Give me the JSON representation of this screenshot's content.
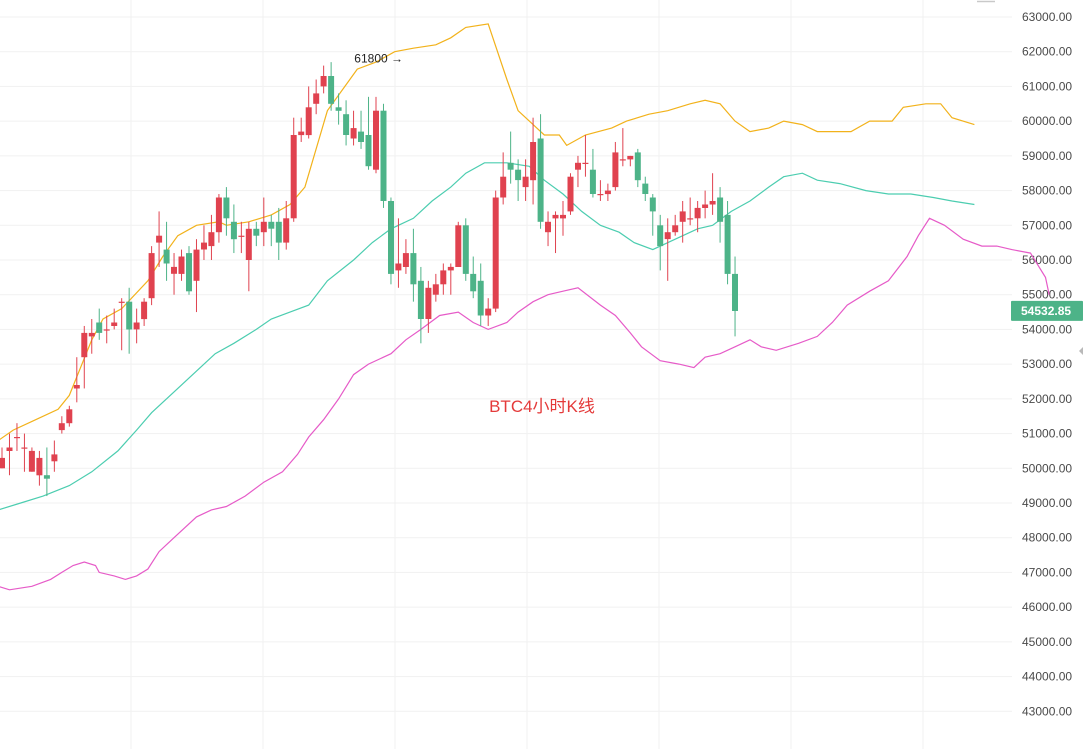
{
  "chart_data": {
    "type": "candlestick",
    "title": "BTC4小时K线",
    "ylim": [
      42000,
      63000
    ],
    "grid": true,
    "y_ticks": [
      "63000.00",
      "62000.00",
      "61000.00",
      "60000.00",
      "59000.00",
      "58000.00",
      "57000.00",
      "56000.00",
      "55000.00",
      "54000.00",
      "53000.00",
      "52000.00",
      "51000.00",
      "50000.00",
      "49000.00",
      "48000.00",
      "47000.00",
      "46000.00",
      "45000.00",
      "44000.00",
      "43000.00"
    ],
    "last_price": "54532.85",
    "annotation": {
      "label": "61800 →",
      "price": 61800
    },
    "colors": {
      "up": "#e0424f",
      "down": "#4db388",
      "upper": "#f2b21b",
      "middle": "#4ccdb0",
      "lower": "#e65bc8",
      "title": "#e43a3a"
    },
    "candles": [
      [
        50000,
        50600,
        50300,
        50000
      ],
      [
        50500,
        51000,
        50600,
        49800
      ],
      [
        50900,
        51300,
        50900,
        50500
      ],
      [
        50600,
        51000,
        50600,
        49900
      ],
      [
        49900,
        50600,
        50500,
        49900
      ],
      [
        49800,
        50500,
        50300,
        49500
      ],
      [
        49800,
        50600,
        49700,
        49200
      ],
      [
        50200,
        50800,
        50400,
        49900
      ],
      [
        51100,
        51500,
        51300,
        51000
      ],
      [
        51300,
        51800,
        51700,
        51200
      ],
      [
        52300,
        53200,
        52400,
        51900
      ],
      [
        53200,
        54100,
        53900,
        52300
      ],
      [
        53800,
        54300,
        53900,
        53300
      ],
      [
        54200,
        54600,
        53900,
        53700
      ],
      [
        54000,
        54400,
        54000,
        53600
      ],
      [
        54100,
        54600,
        54200,
        54000
      ],
      [
        54800,
        54900,
        54800,
        53400
      ],
      [
        54800,
        55200,
        54000,
        53300
      ],
      [
        54000,
        54600,
        54200,
        53600
      ],
      [
        54300,
        54900,
        54800,
        54100
      ],
      [
        54900,
        56400,
        56200,
        54700
      ],
      [
        56500,
        57400,
        56700,
        55800
      ],
      [
        56300,
        57100,
        55900,
        55400
      ],
      [
        55600,
        56200,
        55800,
        55000
      ],
      [
        55600,
        56300,
        56100,
        55400
      ],
      [
        56200,
        56400,
        55100,
        55000
      ],
      [
        55400,
        56600,
        56300,
        54500
      ],
      [
        56300,
        57000,
        56500,
        56000
      ],
      [
        56400,
        57300,
        56800,
        56000
      ],
      [
        56800,
        57900,
        57800,
        56500
      ],
      [
        57800,
        58100,
        57200,
        56700
      ],
      [
        57100,
        57600,
        56600,
        56200
      ],
      [
        56700,
        57100,
        56700,
        56200
      ],
      [
        56000,
        57100,
        56900,
        55100
      ],
      [
        56900,
        57100,
        56700,
        56400
      ],
      [
        56800,
        57800,
        57100,
        56400
      ],
      [
        57100,
        57300,
        56900,
        56400
      ],
      [
        57100,
        57500,
        56500,
        56000
      ],
      [
        56500,
        57700,
        57200,
        56300
      ],
      [
        57200,
        60100,
        59600,
        57100
      ],
      [
        59600,
        60100,
        59700,
        59400
      ],
      [
        59600,
        61000,
        60400,
        59500
      ],
      [
        60500,
        61200,
        60800,
        60200
      ],
      [
        61000,
        61600,
        61300,
        60800
      ],
      [
        61300,
        61700,
        60500,
        60300
      ],
      [
        60400,
        60800,
        60300,
        59900
      ],
      [
        60200,
        60600,
        59600,
        59300
      ],
      [
        59500,
        60300,
        59800,
        59300
      ],
      [
        59700,
        60300,
        59400,
        59200
      ],
      [
        59600,
        60700,
        58700,
        58600
      ],
      [
        58600,
        60700,
        60300,
        58500
      ],
      [
        60300,
        60500,
        57700,
        57500
      ],
      [
        57700,
        57800,
        55600,
        55300
      ],
      [
        55700,
        57200,
        55900,
        55200
      ],
      [
        55800,
        56600,
        56200,
        55600
      ],
      [
        56200,
        56900,
        55300,
        54800
      ],
      [
        55400,
        55800,
        54300,
        53600
      ],
      [
        54300,
        55400,
        55200,
        53900
      ],
      [
        55000,
        55600,
        55300,
        54800
      ],
      [
        55300,
        55900,
        55700,
        55000
      ],
      [
        55700,
        55900,
        55800,
        55000
      ],
      [
        55800,
        57100,
        57000,
        55800
      ],
      [
        57000,
        57200,
        55600,
        55400
      ],
      [
        55600,
        56100,
        55100,
        54900
      ],
      [
        55400,
        55900,
        54400,
        54100
      ],
      [
        54400,
        54900,
        54600,
        54100
      ],
      [
        54600,
        58000,
        57800,
        54500
      ],
      [
        57800,
        59100,
        58400,
        57600
      ],
      [
        58800,
        59700,
        58600,
        58200
      ],
      [
        58600,
        58900,
        58300,
        57700
      ],
      [
        58100,
        58900,
        58400,
        57700
      ],
      [
        58300,
        60100,
        59400,
        57600
      ],
      [
        59500,
        60200,
        57100,
        56900
      ],
      [
        56800,
        57400,
        57100,
        56400
      ],
      [
        57200,
        57400,
        57300,
        56200
      ],
      [
        57200,
        57700,
        57300,
        56700
      ],
      [
        57400,
        58500,
        58400,
        57300
      ],
      [
        58600,
        59000,
        58800,
        58100
      ],
      [
        58800,
        59600,
        58800,
        58400
      ],
      [
        58600,
        59200,
        57900,
        57800
      ],
      [
        57900,
        58300,
        57900,
        57700
      ],
      [
        57900,
        58200,
        58000,
        57700
      ],
      [
        58100,
        59400,
        59100,
        58000
      ],
      [
        58900,
        59800,
        58900,
        58700
      ],
      [
        58900,
        59000,
        59000,
        58700
      ],
      [
        59100,
        59200,
        58300,
        58100
      ],
      [
        58200,
        58400,
        57900,
        57700
      ],
      [
        57800,
        57900,
        57400,
        56700
      ],
      [
        57000,
        57300,
        56400,
        55700
      ],
      [
        56600,
        57200,
        56800,
        55400
      ],
      [
        56800,
        57300,
        57000,
        56700
      ],
      [
        57100,
        57700,
        57400,
        56500
      ],
      [
        57200,
        57800,
        57200,
        57000
      ],
      [
        57200,
        57700,
        57500,
        56800
      ],
      [
        57500,
        58000,
        57600,
        57200
      ],
      [
        57600,
        58500,
        57700,
        57300
      ],
      [
        57800,
        58100,
        57100,
        56500
      ],
      [
        57300,
        57700,
        55600,
        55300
      ],
      [
        55600,
        56100,
        54532,
        53800
      ]
    ],
    "bands": {
      "upper": [
        [
          -0.5,
          50800
        ],
        [
          1.5,
          51100
        ],
        [
          4.5,
          51400
        ],
        [
          7.5,
          51700
        ],
        [
          9,
          52100
        ],
        [
          12,
          53700
        ],
        [
          13.5,
          54300
        ],
        [
          16,
          54600
        ],
        [
          19.5,
          55400
        ],
        [
          21.5,
          56100
        ],
        [
          23.5,
          56700
        ],
        [
          26,
          57000
        ],
        [
          29,
          57100
        ],
        [
          30,
          57000
        ],
        [
          33,
          57100
        ],
        [
          36,
          57300
        ],
        [
          38.5,
          57600
        ],
        [
          40.5,
          58100
        ],
        [
          43.5,
          60300
        ],
        [
          47.5,
          61500
        ],
        [
          50,
          61700
        ],
        [
          52.5,
          62000
        ],
        [
          55,
          62100
        ],
        [
          58,
          62200
        ],
        [
          60,
          62400
        ],
        [
          62,
          62700
        ],
        [
          65,
          62800
        ],
        [
          67.5,
          61200
        ],
        [
          69,
          60300
        ],
        [
          71,
          59900
        ],
        [
          72.5,
          59600
        ],
        [
          74.5,
          59600
        ],
        [
          75.5,
          59300
        ],
        [
          78,
          59600
        ],
        [
          81.5,
          59800
        ],
        [
          83.5,
          60000
        ],
        [
          86.5,
          60200
        ],
        [
          89,
          60300
        ],
        [
          92,
          60500
        ],
        [
          94,
          60600
        ],
        [
          96,
          60500
        ],
        [
          98,
          60000
        ],
        [
          100,
          59700
        ],
        [
          102.5,
          59800
        ],
        [
          104.5,
          60000
        ],
        [
          107,
          59900
        ],
        [
          109,
          59700
        ],
        [
          113.5,
          59700
        ],
        [
          116,
          60000
        ],
        [
          119,
          60000
        ],
        [
          120.5,
          60400
        ],
        [
          123.5,
          60500
        ],
        [
          125.5,
          60500
        ],
        [
          127,
          60100
        ],
        [
          130,
          59900
        ]
      ],
      "middle": [
        [
          -0.5,
          48800
        ],
        [
          2.5,
          49000
        ],
        [
          5.5,
          49200
        ],
        [
          9,
          49500
        ],
        [
          12,
          49900
        ],
        [
          15.5,
          50500
        ],
        [
          18,
          51100
        ],
        [
          20,
          51600
        ],
        [
          23.5,
          52300
        ],
        [
          26,
          52800
        ],
        [
          28.5,
          53300
        ],
        [
          31,
          53600
        ],
        [
          34,
          54000
        ],
        [
          36,
          54300
        ],
        [
          38.5,
          54500
        ],
        [
          41,
          54700
        ],
        [
          43.5,
          55400
        ],
        [
          47,
          56000
        ],
        [
          49.5,
          56500
        ],
        [
          52,
          56900
        ],
        [
          55,
          57200
        ],
        [
          57.5,
          57700
        ],
        [
          60,
          58100
        ],
        [
          62,
          58500
        ],
        [
          64.5,
          58800
        ],
        [
          67.5,
          58800
        ],
        [
          70.5,
          58700
        ],
        [
          72.5,
          58300
        ],
        [
          75,
          57900
        ],
        [
          77.5,
          57400
        ],
        [
          80,
          57000
        ],
        [
          82.5,
          56800
        ],
        [
          84.5,
          56500
        ],
        [
          87,
          56300
        ],
        [
          90,
          56600
        ],
        [
          93,
          56900
        ],
        [
          95,
          57000
        ],
        [
          97.5,
          57400
        ],
        [
          100,
          57700
        ],
        [
          102.5,
          58100
        ],
        [
          104.5,
          58400
        ],
        [
          107,
          58500
        ],
        [
          109,
          58300
        ],
        [
          112,
          58200
        ],
        [
          115.5,
          58000
        ],
        [
          118.5,
          57900
        ],
        [
          121.5,
          57900
        ],
        [
          124.5,
          57800
        ],
        [
          127,
          57700
        ],
        [
          130,
          57600
        ]
      ],
      "lower": [
        [
          -0.5,
          46600
        ],
        [
          1,
          46500
        ],
        [
          4,
          46600
        ],
        [
          6.5,
          46800
        ],
        [
          8,
          47000
        ],
        [
          9.5,
          47200
        ],
        [
          11,
          47300
        ],
        [
          12.5,
          47200
        ],
        [
          13,
          47000
        ],
        [
          15,
          46900
        ],
        [
          16.5,
          46800
        ],
        [
          18,
          46900
        ],
        [
          19.5,
          47100
        ],
        [
          21,
          47600
        ],
        [
          23,
          48000
        ],
        [
          26,
          48600
        ],
        [
          28,
          48800
        ],
        [
          30,
          48900
        ],
        [
          32.5,
          49200
        ],
        [
          35,
          49600
        ],
        [
          37.5,
          49900
        ],
        [
          39.5,
          50400
        ],
        [
          41,
          50900
        ],
        [
          43,
          51400
        ],
        [
          45,
          52000
        ],
        [
          47,
          52700
        ],
        [
          49,
          53000
        ],
        [
          52,
          53300
        ],
        [
          54,
          53700
        ],
        [
          56,
          54000
        ],
        [
          58.5,
          54400
        ],
        [
          61,
          54500
        ],
        [
          63,
          54200
        ],
        [
          65,
          54000
        ],
        [
          67.5,
          54200
        ],
        [
          69,
          54500
        ],
        [
          71,
          54800
        ],
        [
          73,
          55000
        ],
        [
          75,
          55100
        ],
        [
          77,
          55200
        ],
        [
          80,
          54700
        ],
        [
          82,
          54400
        ],
        [
          84,
          53900
        ],
        [
          85.5,
          53500
        ],
        [
          88,
          53100
        ],
        [
          90.5,
          53000
        ],
        [
          92.5,
          52900
        ],
        [
          94,
          53200
        ],
        [
          96,
          53300
        ],
        [
          98,
          53500
        ],
        [
          100,
          53700
        ],
        [
          101.5,
          53500
        ],
        [
          103.5,
          53400
        ],
        [
          106.5,
          53600
        ],
        [
          109,
          53800
        ],
        [
          111,
          54200
        ],
        [
          113,
          54700
        ],
        [
          116,
          55100
        ],
        [
          118.5,
          55400
        ],
        [
          121,
          56100
        ],
        [
          122.5,
          56700
        ],
        [
          124,
          57200
        ],
        [
          126,
          57000
        ],
        [
          128.5,
          56600
        ],
        [
          131,
          56400
        ],
        [
          133,
          56400
        ],
        [
          135,
          56300
        ],
        [
          137.5,
          56200
        ],
        [
          139.5,
          55500
        ],
        [
          140,
          55000
        ]
      ]
    }
  }
}
